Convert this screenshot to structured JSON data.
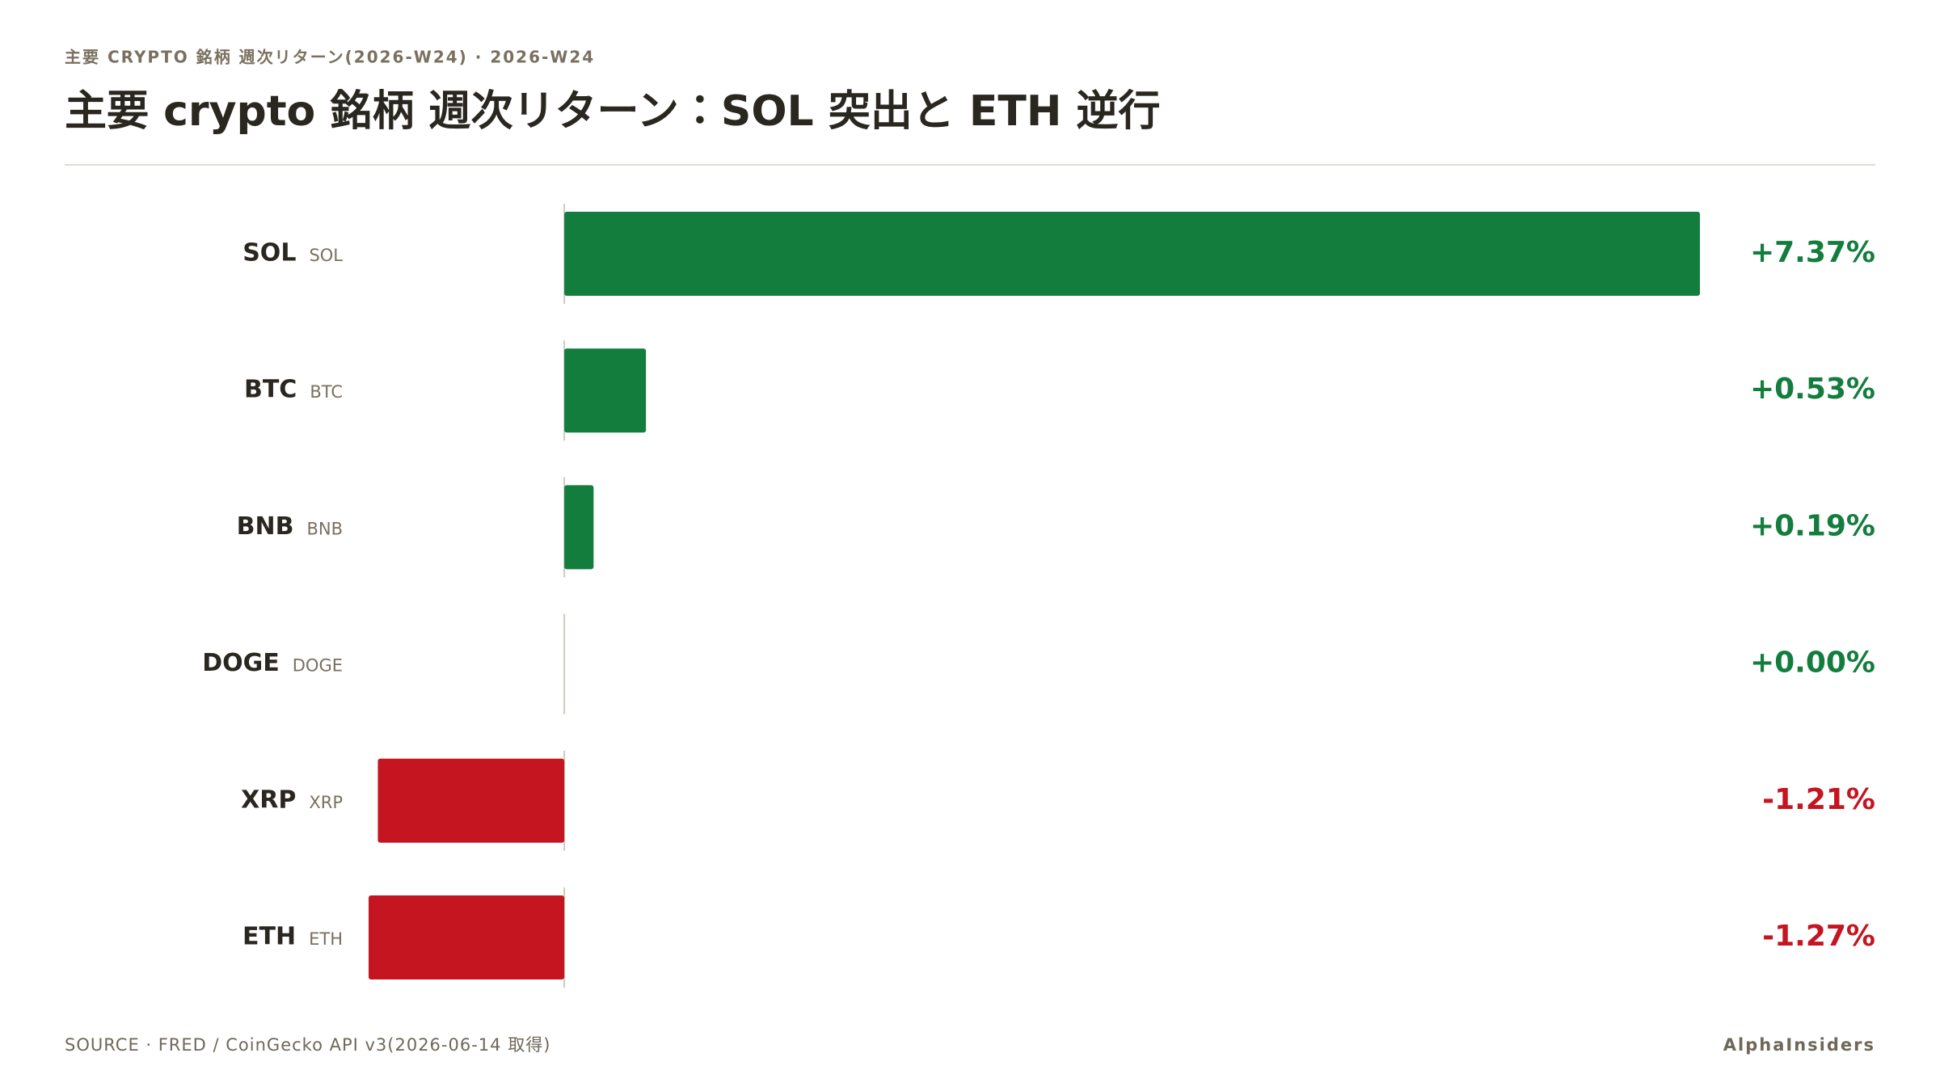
{
  "chart_data": {
    "type": "bar",
    "kicker": "主要 CRYPTO 銘柄 週次リターン(2026-W24) · 2026-W24",
    "title": "主要 crypto 銘柄 週次リターン：SOL 突出と ETH 逆行",
    "categories": [
      "SOL",
      "BTC",
      "BNB",
      "DOGE",
      "XRP",
      "ETH"
    ],
    "symbols": [
      "SOL",
      "BTC",
      "BNB",
      "DOGE",
      "XRP",
      "ETH"
    ],
    "values": [
      7.37,
      0.53,
      0.19,
      0.0,
      -1.21,
      -1.27
    ],
    "value_labels": [
      "+7.37%",
      "+0.53%",
      "+0.19%",
      "+0.00%",
      "-1.21%",
      "-1.27%"
    ],
    "colors": {
      "positive": "#137d3e",
      "negative": "#c41520"
    },
    "source": "SOURCE · FRED / CoinGecko API v3(2026-06-14 取得)",
    "brand": "AlphaInsiders"
  }
}
